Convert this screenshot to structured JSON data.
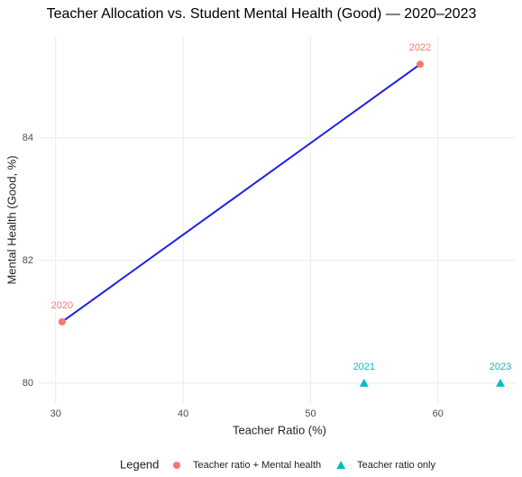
{
  "chart_data": {
    "type": "scatter",
    "title": "Teacher Allocation vs. Student Mental Health (Good) — 2020–2023",
    "x_label": "Teacher Ratio (%)",
    "y_label": "Mental Health (Good, %)",
    "legend_title": "Legend",
    "legend_position": "bottom",
    "grid": true,
    "xlim": [
      28.6,
      66.1
    ],
    "ylim": [
      79.66,
      85.66
    ],
    "xticks": [
      30,
      40,
      50,
      60
    ],
    "yticks": [
      80,
      82,
      84
    ],
    "line_color": "#1f1fe6",
    "series": [
      {
        "name": "Teacher ratio + Mental health",
        "color": "#f8766d",
        "marker": "circle",
        "connect": true,
        "x": [
          30.5,
          58.6
        ],
        "values": [
          81.0,
          85.2
        ],
        "labels": [
          "2020",
          "2022"
        ]
      },
      {
        "name": "Teacher ratio only",
        "color": "#00bfc4",
        "marker": "triangle",
        "connect": false,
        "x": [
          54.2,
          64.9
        ],
        "values": [
          80.0,
          80.0
        ],
        "labels": [
          "2021",
          "2023"
        ]
      }
    ]
  }
}
